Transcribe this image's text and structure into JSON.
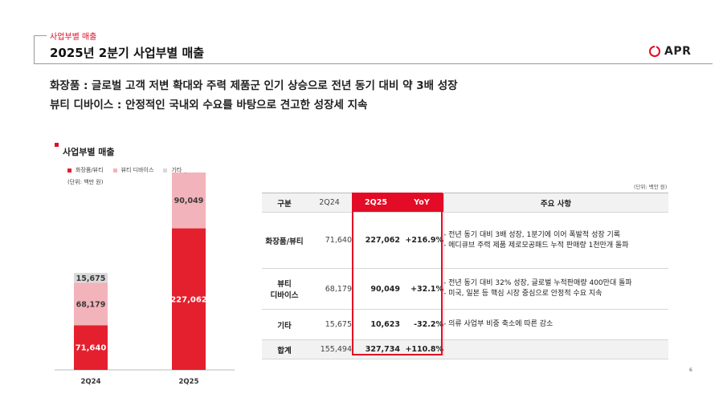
{
  "header": {
    "section_label": "사업부별 매출",
    "title": "2025년 2분기 사업부별 매출",
    "logo_text": "APR"
  },
  "headlines": [
    "화장품 : 글로벌 고객 저변 확대와 주력 제품군 인기 상승으로 전년 동기 대비 약 3배 성장",
    "뷰티 디바이스 : 안정적인 국내외 수요를 바탕으로 견고한 성장세 지속"
  ],
  "chart_data": {
    "type": "bar",
    "stacked": true,
    "title": "사업부별 매출",
    "unit_label": "(단위: 백만 원)",
    "categories": [
      "2Q24",
      "2Q25"
    ],
    "series": [
      {
        "name": "화장품/뷰티",
        "values": [
          71640,
          227062
        ],
        "labels": [
          "71,640",
          "227,062"
        ],
        "color": "#e4202e"
      },
      {
        "name": "뷰티 디바이스",
        "values": [
          68179,
          90049
        ],
        "labels": [
          "68,179",
          "90,049"
        ],
        "color": "#f3b3ba"
      },
      {
        "name": "기타",
        "values": [
          15675,
          10623
        ],
        "labels": [
          "15,675",
          "10,623"
        ],
        "color": "#d9d9d9"
      }
    ],
    "legend_position": "top",
    "grid": false
  },
  "table": {
    "unit_label": "(단위: 백만 원)",
    "headers": {
      "category": "구분",
      "q24": "2Q24",
      "q25": "2Q25",
      "yoy": "YoY",
      "notes": "주요 사항"
    },
    "rows": [
      {
        "category": "화장품/뷰티",
        "q24": "71,640",
        "q25": "227,062",
        "yoy": "+216.9%",
        "notes": [
          "- 전년 동기 대비 3배 성장, 1분기에 이어 폭발적 성장 기록",
          "- 메디큐브 주력 제품 제로모공패드 누적 판매량 1천만개 돌파"
        ]
      },
      {
        "category_lines": [
          "뷰티",
          "디바이스"
        ],
        "q24": "68,179",
        "q25": "90,049",
        "yoy": "+32.1%",
        "notes": [
          "- 전년 동기 대비 32% 성장, 글로벌 누적판매량 400만대 돌파",
          "- 미국, 일본 등 핵심 시장 중심으로 안정적 수요 지속"
        ]
      },
      {
        "category": "기타",
        "q24": "15,675",
        "q25": "10,623",
        "yoy": "-32.2%",
        "notes": [
          "- 의류 사업부 비중 축소에 따른 감소"
        ]
      },
      {
        "category": "합계",
        "q24": "155,494",
        "q25": "327,734",
        "yoy": "+110.8%"
      }
    ]
  },
  "page_number": "6",
  "colors": {
    "accent": "#e30b25",
    "cosmetics": "#e4202e",
    "device": "#f3b3ba",
    "other": "#d9d9d9"
  }
}
